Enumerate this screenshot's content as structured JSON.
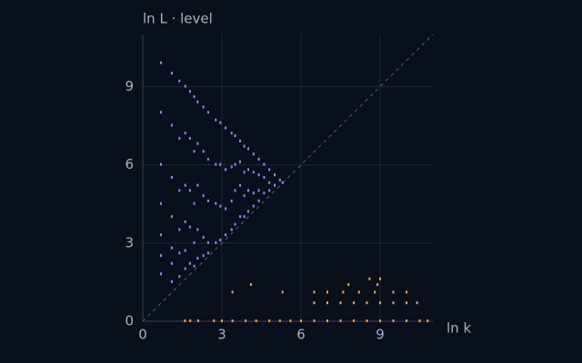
{
  "chart_data": {
    "type": "scatter",
    "ylabel": "ln L · level",
    "xlabel": "ln k",
    "xlim": [
      0,
      11
    ],
    "ylim": [
      0,
      11
    ],
    "xticks": [
      0,
      3,
      6,
      9
    ],
    "yticks": [
      0,
      3,
      6,
      9
    ],
    "grid": true,
    "series": [
      {
        "color": "#6c9cf0",
        "x": [
          0.69,
          0.69,
          0.69,
          0.69,
          0.69,
          0.69,
          0.69,
          1.1,
          1.1,
          1.1,
          1.1,
          1.1,
          1.1,
          1.1,
          1.39,
          1.39,
          1.39,
          1.39,
          1.39,
          1.39,
          1.61,
          1.61,
          1.61,
          1.61,
          1.61,
          1.61,
          1.79,
          1.79,
          1.79,
          1.79,
          1.79,
          1.95,
          1.95,
          1.95,
          1.95,
          1.95,
          2.08,
          2.08,
          2.08,
          2.08,
          2.08,
          2.3,
          2.3,
          2.3,
          2.3,
          2.3,
          2.48,
          2.48,
          2.48,
          2.48,
          2.48,
          2.77,
          2.77,
          2.77,
          2.77,
          2.94,
          2.94,
          2.94,
          2.94,
          3.14,
          3.14,
          3.14,
          3.14,
          3.37,
          3.37,
          3.37,
          3.37,
          3.5,
          3.5,
          3.5,
          3.5,
          3.69,
          3.69,
          3.69,
          3.69,
          3.85,
          3.85,
          3.85,
          3.85,
          4.0,
          4.0,
          4.0,
          4.0,
          4.2,
          4.2,
          4.2,
          4.2,
          4.4,
          4.4,
          4.4,
          4.4,
          4.6,
          4.6,
          4.6,
          4.8,
          4.8,
          4.8,
          5.0,
          5.0,
          5.2,
          5.3
        ],
        "values": [
          9.9,
          8,
          6,
          4.5,
          3.3,
          2.5,
          1.8,
          9.5,
          7.5,
          5.5,
          4,
          2.8,
          2.2,
          1.5,
          9.2,
          7,
          5,
          3.5,
          2.6,
          1.7,
          9.0,
          7.2,
          5.2,
          3.8,
          2.7,
          2.0,
          8.8,
          7,
          5,
          3.6,
          2.2,
          8.6,
          6.5,
          4.5,
          3.0,
          2.1,
          8.4,
          6.8,
          5.2,
          3.5,
          2.4,
          8.2,
          6.5,
          4.8,
          3.2,
          2.5,
          8.0,
          6.2,
          4.6,
          3.0,
          2.6,
          7.7,
          6.0,
          4.5,
          3.0,
          7.6,
          6.0,
          4.4,
          3.1,
          7.4,
          5.8,
          4.3,
          3.3,
          7.2,
          5.9,
          4.6,
          3.5,
          7.1,
          6.0,
          5.0,
          3.7,
          6.9,
          6.1,
          5.2,
          4.0,
          6.7,
          5.7,
          4.8,
          4.0,
          6.6,
          5.8,
          5.0,
          4.2,
          6.4,
          5.7,
          4.9,
          4.4,
          6.2,
          5.6,
          5.0,
          4.6,
          6.0,
          5.5,
          4.9,
          5.8,
          5.3,
          5.0,
          5.6,
          5.2,
          5.4,
          5.3
        ]
      },
      {
        "color": "#f0a050",
        "x": [
          1.6,
          1.8,
          2.1,
          2.7,
          3.0,
          3.4,
          3.9,
          4.3,
          4.8,
          5.2,
          5.6,
          6.0,
          6.5,
          7.0,
          7.5,
          8.0,
          8.5,
          9.0,
          9.5,
          10.0,
          10.5,
          10.8,
          6.5,
          7.0,
          7.5,
          8.0,
          8.5,
          9.0,
          9.5,
          10.0,
          10.4,
          3.4,
          5.3,
          6.5,
          7.0,
          7.6,
          8.2,
          8.8,
          9.5,
          10.0,
          4.1,
          7.8,
          8.9,
          8.6,
          9.0
        ],
        "values": [
          0,
          0,
          0,
          0,
          0,
          0,
          0,
          0,
          0,
          0,
          0,
          0,
          0,
          0,
          0,
          0,
          0,
          0,
          0,
          0,
          0,
          0,
          0.69,
          0.69,
          0.69,
          0.69,
          0.69,
          0.69,
          0.69,
          0.69,
          0.69,
          1.1,
          1.1,
          1.1,
          1.1,
          1.1,
          1.1,
          1.1,
          1.1,
          1.1,
          1.39,
          1.39,
          1.39,
          1.61,
          1.61
        ]
      }
    ]
  }
}
